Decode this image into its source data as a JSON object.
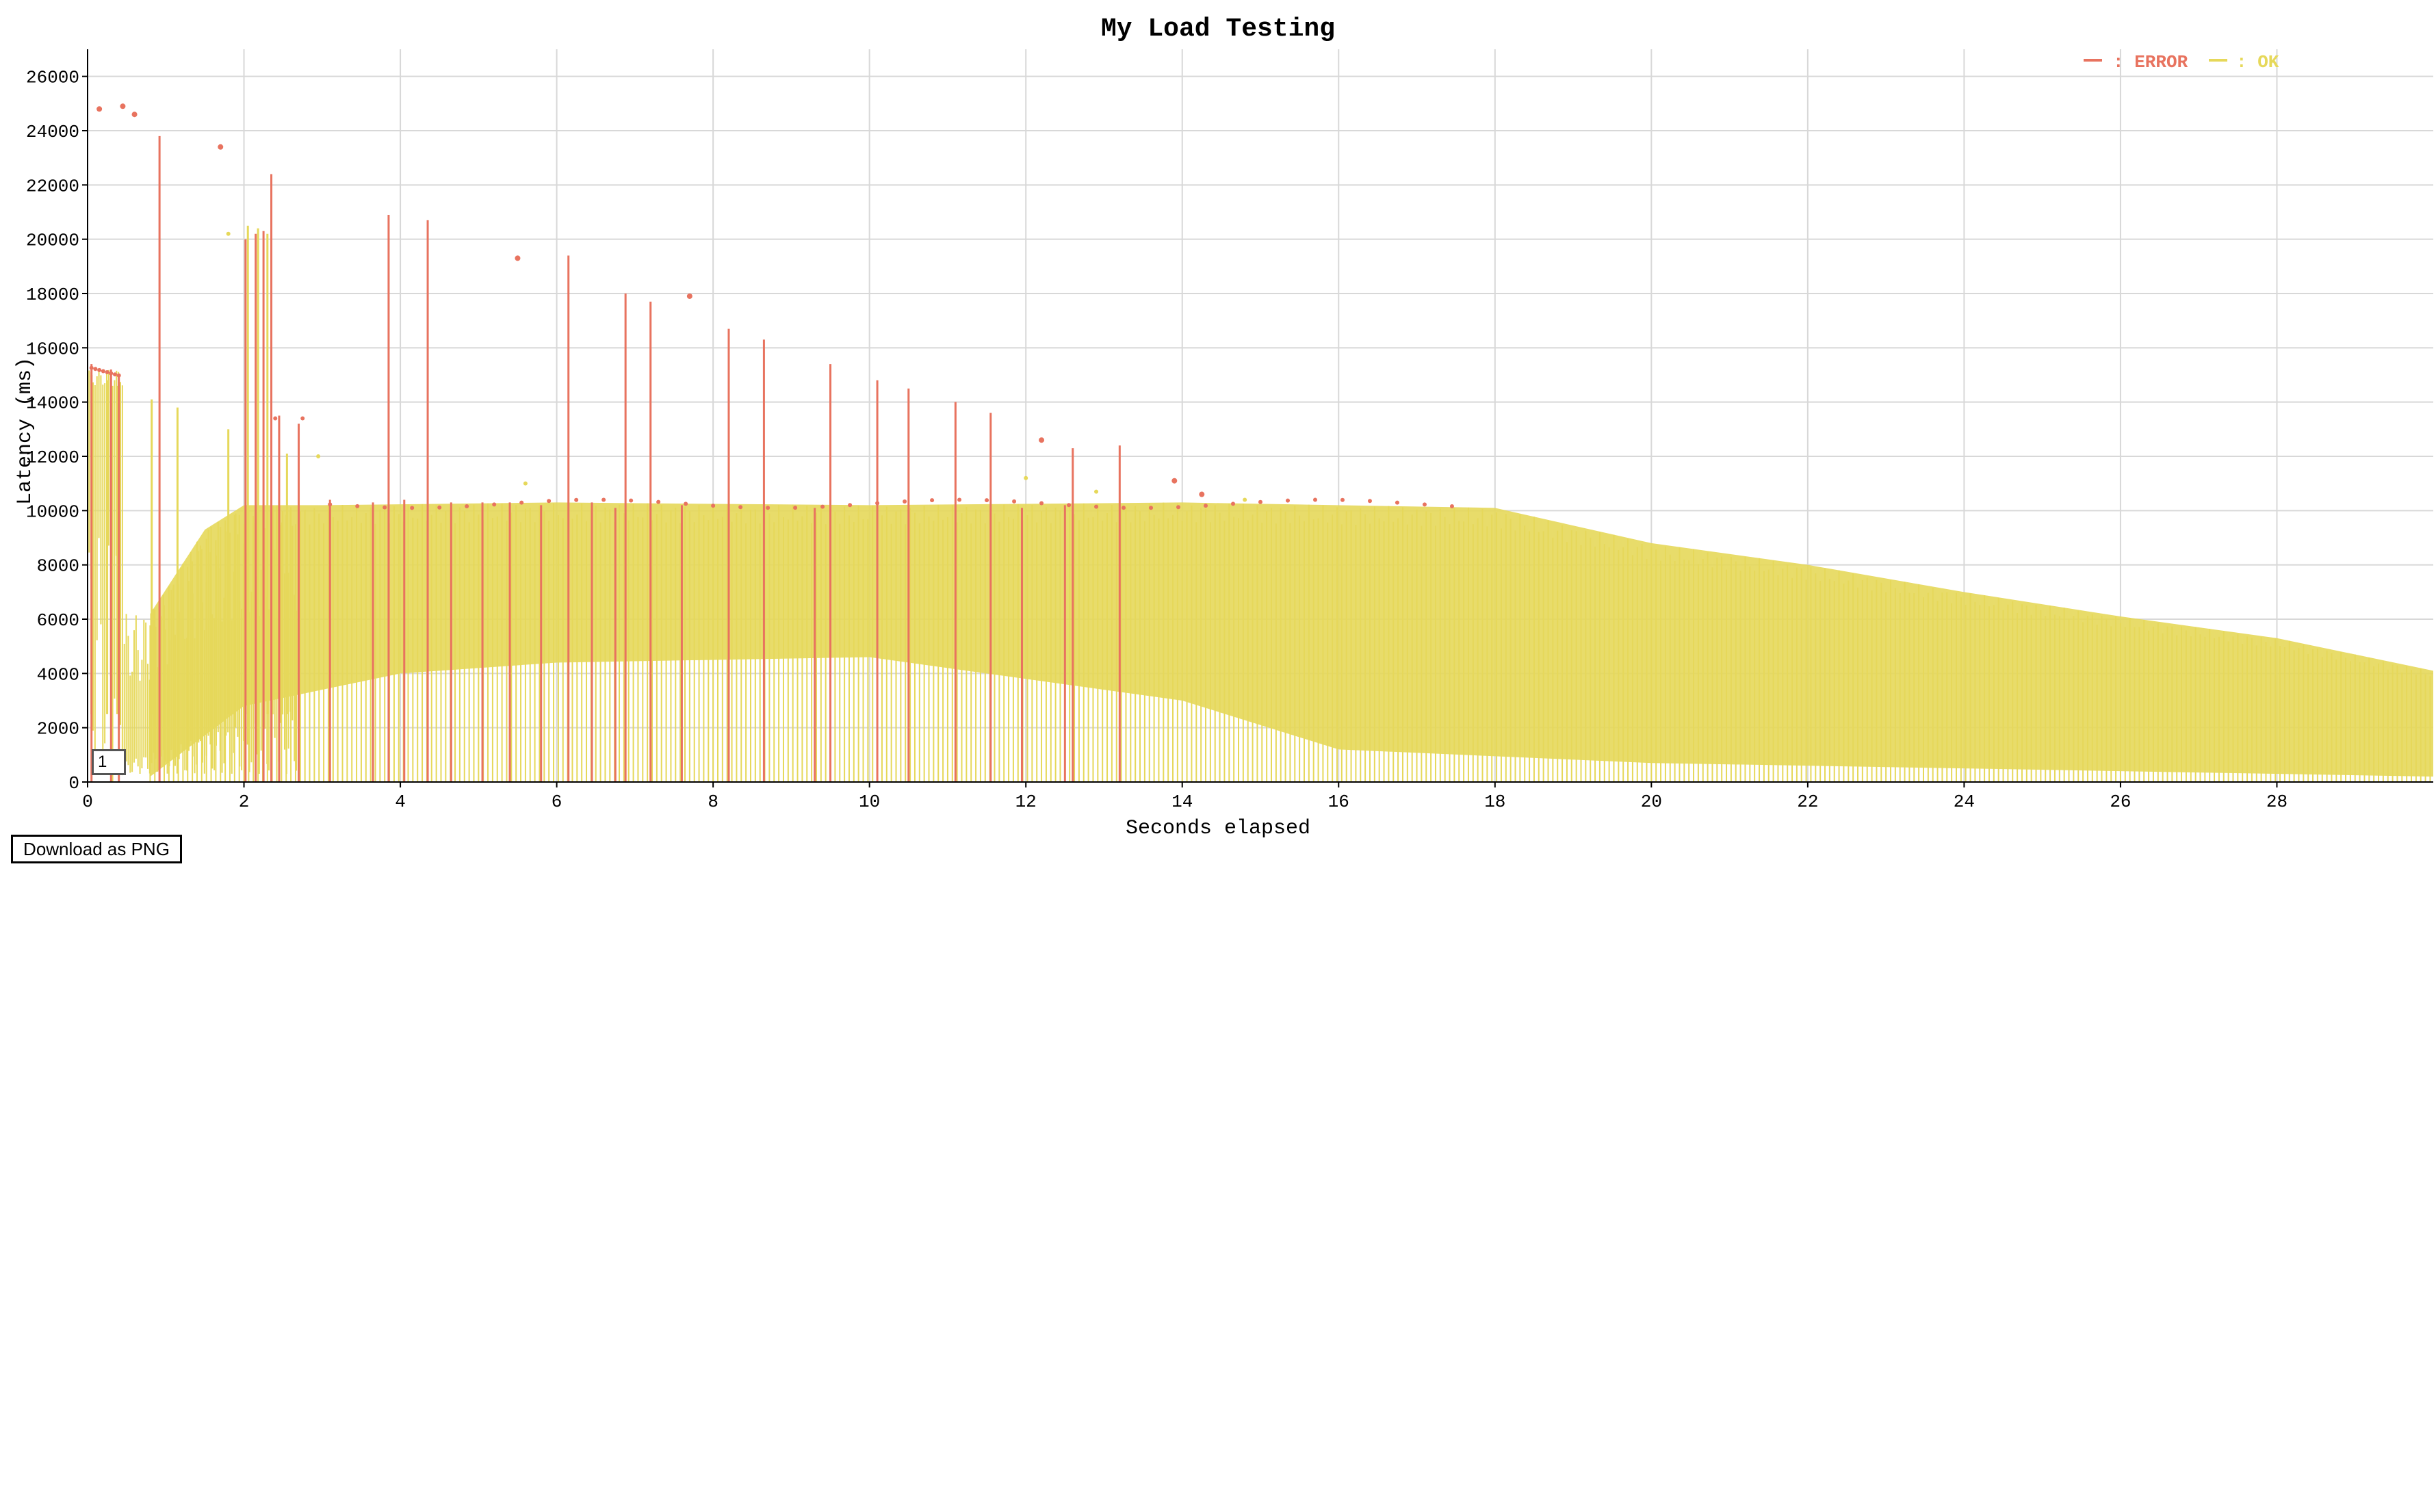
{
  "chart_data": {
    "type": "line",
    "title": "My Load Testing",
    "xlabel": "Seconds elapsed",
    "ylabel": "Latency (ms)",
    "xlim": [
      0,
      30
    ],
    "ylim": [
      0,
      27000
    ],
    "x_ticks": [
      0,
      2,
      4,
      6,
      8,
      10,
      12,
      14,
      16,
      18,
      20,
      22,
      24,
      26,
      28
    ],
    "y_ticks": [
      0,
      2000,
      4000,
      6000,
      8000,
      10000,
      12000,
      14000,
      16000,
      18000,
      20000,
      22000,
      24000,
      26000
    ],
    "grid": true,
    "legend_position": "top-right",
    "series": [
      {
        "name": "ERROR",
        "legend_label": ": ERROR",
        "color": "#e8735f",
        "spikes": [
          {
            "x": 0.05,
            "y": 15400
          },
          {
            "x": 0.3,
            "y": 15200
          },
          {
            "x": 0.4,
            "y": 15000
          },
          {
            "x": 0.92,
            "y": 23800
          },
          {
            "x": 2.02,
            "y": 20000
          },
          {
            "x": 2.15,
            "y": 20200
          },
          {
            "x": 2.25,
            "y": 20300
          },
          {
            "x": 2.35,
            "y": 22400
          },
          {
            "x": 2.45,
            "y": 13500
          },
          {
            "x": 2.7,
            "y": 13200
          },
          {
            "x": 3.1,
            "y": 10400
          },
          {
            "x": 3.65,
            "y": 10300
          },
          {
            "x": 3.85,
            "y": 20900
          },
          {
            "x": 4.05,
            "y": 10400
          },
          {
            "x": 4.35,
            "y": 20700
          },
          {
            "x": 4.65,
            "y": 10300
          },
          {
            "x": 5.05,
            "y": 10300
          },
          {
            "x": 5.4,
            "y": 10300
          },
          {
            "x": 5.8,
            "y": 10200
          },
          {
            "x": 6.15,
            "y": 19400
          },
          {
            "x": 6.45,
            "y": 10300
          },
          {
            "x": 6.75,
            "y": 10100
          },
          {
            "x": 6.88,
            "y": 18000
          },
          {
            "x": 7.2,
            "y": 17700
          },
          {
            "x": 7.6,
            "y": 10200
          },
          {
            "x": 8.2,
            "y": 16700
          },
          {
            "x": 8.65,
            "y": 16300
          },
          {
            "x": 9.3,
            "y": 10100
          },
          {
            "x": 9.5,
            "y": 15400
          },
          {
            "x": 10.1,
            "y": 14800
          },
          {
            "x": 10.5,
            "y": 14500
          },
          {
            "x": 11.1,
            "y": 14000
          },
          {
            "x": 11.55,
            "y": 13600
          },
          {
            "x": 11.95,
            "y": 10100
          },
          {
            "x": 12.6,
            "y": 12300
          },
          {
            "x": 13.2,
            "y": 12400
          },
          {
            "x": 12.5,
            "y": 10200
          }
        ],
        "points": [
          {
            "x": 0.15,
            "y": 24800
          },
          {
            "x": 0.45,
            "y": 24900
          },
          {
            "x": 0.6,
            "y": 24600
          },
          {
            "x": 1.7,
            "y": 23400
          },
          {
            "x": 5.5,
            "y": 19300
          },
          {
            "x": 7.7,
            "y": 17900
          },
          {
            "x": 12.2,
            "y": 12600
          },
          {
            "x": 13.9,
            "y": 11100
          },
          {
            "x": 14.25,
            "y": 10600
          }
        ]
      },
      {
        "name": "OK",
        "legend_label": ": OK",
        "color": "#e6d85a",
        "upper_envelope": [
          {
            "x": 0.8,
            "y": 6200
          },
          {
            "x": 1.5,
            "y": 9300
          },
          {
            "x": 2.0,
            "y": 10200
          },
          {
            "x": 3.0,
            "y": 10200
          },
          {
            "x": 6.0,
            "y": 10300
          },
          {
            "x": 10.0,
            "y": 10200
          },
          {
            "x": 14.0,
            "y": 10300
          },
          {
            "x": 18.0,
            "y": 10100
          },
          {
            "x": 20.0,
            "y": 8800
          },
          {
            "x": 22.0,
            "y": 8000
          },
          {
            "x": 24.0,
            "y": 7000
          },
          {
            "x": 26.0,
            "y": 6100
          },
          {
            "x": 28.0,
            "y": 5300
          },
          {
            "x": 30.0,
            "y": 4100
          }
        ],
        "lower_envelope": [
          {
            "x": 0.8,
            "y": 200
          },
          {
            "x": 2.0,
            "y": 2800
          },
          {
            "x": 4.0,
            "y": 4000
          },
          {
            "x": 6.0,
            "y": 4400
          },
          {
            "x": 10.0,
            "y": 4600
          },
          {
            "x": 14.0,
            "y": 3000
          },
          {
            "x": 16.0,
            "y": 1200
          },
          {
            "x": 20.0,
            "y": 700
          },
          {
            "x": 24.0,
            "y": 500
          },
          {
            "x": 30.0,
            "y": 200
          }
        ],
        "spikes": [
          {
            "x": 0.05,
            "y": 15000
          },
          {
            "x": 0.25,
            "y": 14800
          },
          {
            "x": 0.38,
            "y": 14600
          },
          {
            "x": 0.82,
            "y": 14100
          },
          {
            "x": 1.15,
            "y": 13800
          },
          {
            "x": 1.8,
            "y": 13000
          },
          {
            "x": 2.05,
            "y": 20500
          },
          {
            "x": 2.18,
            "y": 20400
          },
          {
            "x": 2.3,
            "y": 20200
          },
          {
            "x": 2.55,
            "y": 12100
          }
        ],
        "points": [
          {
            "x": 1.8,
            "y": 20200
          },
          {
            "x": 2.95,
            "y": 12000
          },
          {
            "x": 5.6,
            "y": 11000
          },
          {
            "x": 12.0,
            "y": 11200
          },
          {
            "x": 12.9,
            "y": 10700
          },
          {
            "x": 14.8,
            "y": 10400
          }
        ]
      }
    ],
    "series_selector_value": "1"
  },
  "controls": {
    "download_label": "Download as PNG"
  }
}
